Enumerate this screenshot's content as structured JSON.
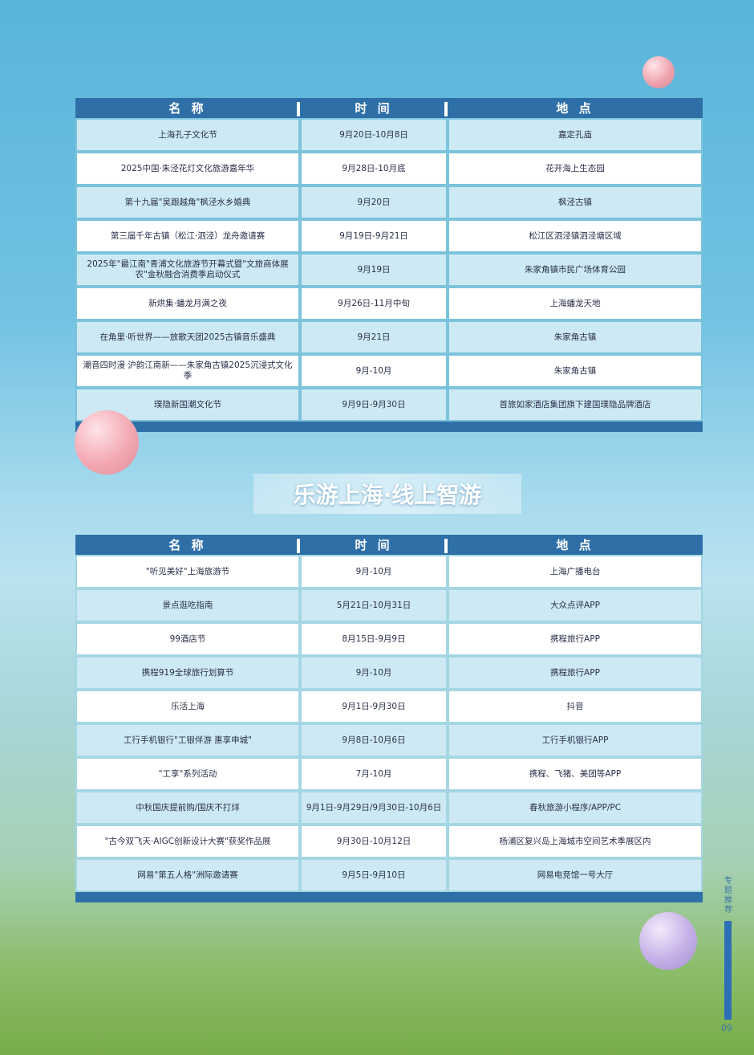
{
  "headers": [
    "名 称",
    "时 间",
    "地 点"
  ],
  "table1": [
    [
      "上海孔子文化节",
      "9月20日-10月8日",
      "嘉定孔庙"
    ],
    [
      "2025中国·朱泾花灯文化旅游嘉年华",
      "9月28日-10月底",
      "花开海上生态园"
    ],
    [
      "第十九届\"吴跟越角\"枫泾水乡婚典",
      "9月20日",
      "枫泾古镇"
    ],
    [
      "第三届千年古镇（松江·泗泾）龙舟邀请赛",
      "9月19日-9月21日",
      "松江区泗泾镇泗泾塘区域"
    ],
    [
      "2025年\"最江南\"青浦文化旅游节开幕式暨\"文旅商体展农\"金秋融合消费季启动仪式",
      "9月19日",
      "朱家角镇市民广场体育公园"
    ],
    [
      "新烘集·蟠龙月满之夜",
      "9月26日-11月中旬",
      "上海蟠龙天地"
    ],
    [
      "在角里·听世界——放歌天团2025古镇音乐盛典",
      "9月21日",
      "朱家角古镇"
    ],
    [
      "潮音四时漫 沪韵江南新——朱家角古镇2025沉浸式文化季",
      "9月-10月",
      "朱家角古镇"
    ],
    [
      "璞隐新国潮文化节",
      "9月9日-9月30日",
      "首旅如家酒店集团旗下建国璞隐品牌酒店"
    ]
  ],
  "section_title": "乐游上海·线上智游",
  "table2": [
    [
      "\"听见美好\"上海旅游节",
      "9月-10月",
      "上海广播电台"
    ],
    [
      "景点逛吃指南",
      "5月21日-10月31日",
      "大众点评APP"
    ],
    [
      "99酒店节",
      "8月15日-9月9日",
      "携程旅行APP"
    ],
    [
      "携程919全球旅行划算节",
      "9月-10月",
      "携程旅行APP"
    ],
    [
      "乐活上海",
      "9月1日-9月30日",
      "抖音"
    ],
    [
      "工行手机银行\"工银伴游 惠享申城\"",
      "9月8日-10月6日",
      "工行手机银行APP"
    ],
    [
      "\"工享\"系列活动",
      "7月-10月",
      "携程、飞猪、美团等APP"
    ],
    [
      "中秋国庆提前购/国庆不打烊",
      "9月1日-9月29日/9月30日-10月6日",
      "春秋旅游小程序/APP/PC"
    ],
    [
      "\"古今双飞天·AIGC创新设计大赛\"获奖作品展",
      "9月30日-10月12日",
      "杨浦区复兴岛上海城市空间艺术季展区内"
    ],
    [
      "网易\"第五人格\"洲际邀请赛",
      "9月5日-9月10日",
      "网易电竞馆一号大厅"
    ]
  ],
  "side_label": "专题推荐",
  "page_number": "09",
  "colors": {
    "header": "#2e6fa8",
    "row_light": "#cdeaf4",
    "row_white": "#ffffff"
  }
}
